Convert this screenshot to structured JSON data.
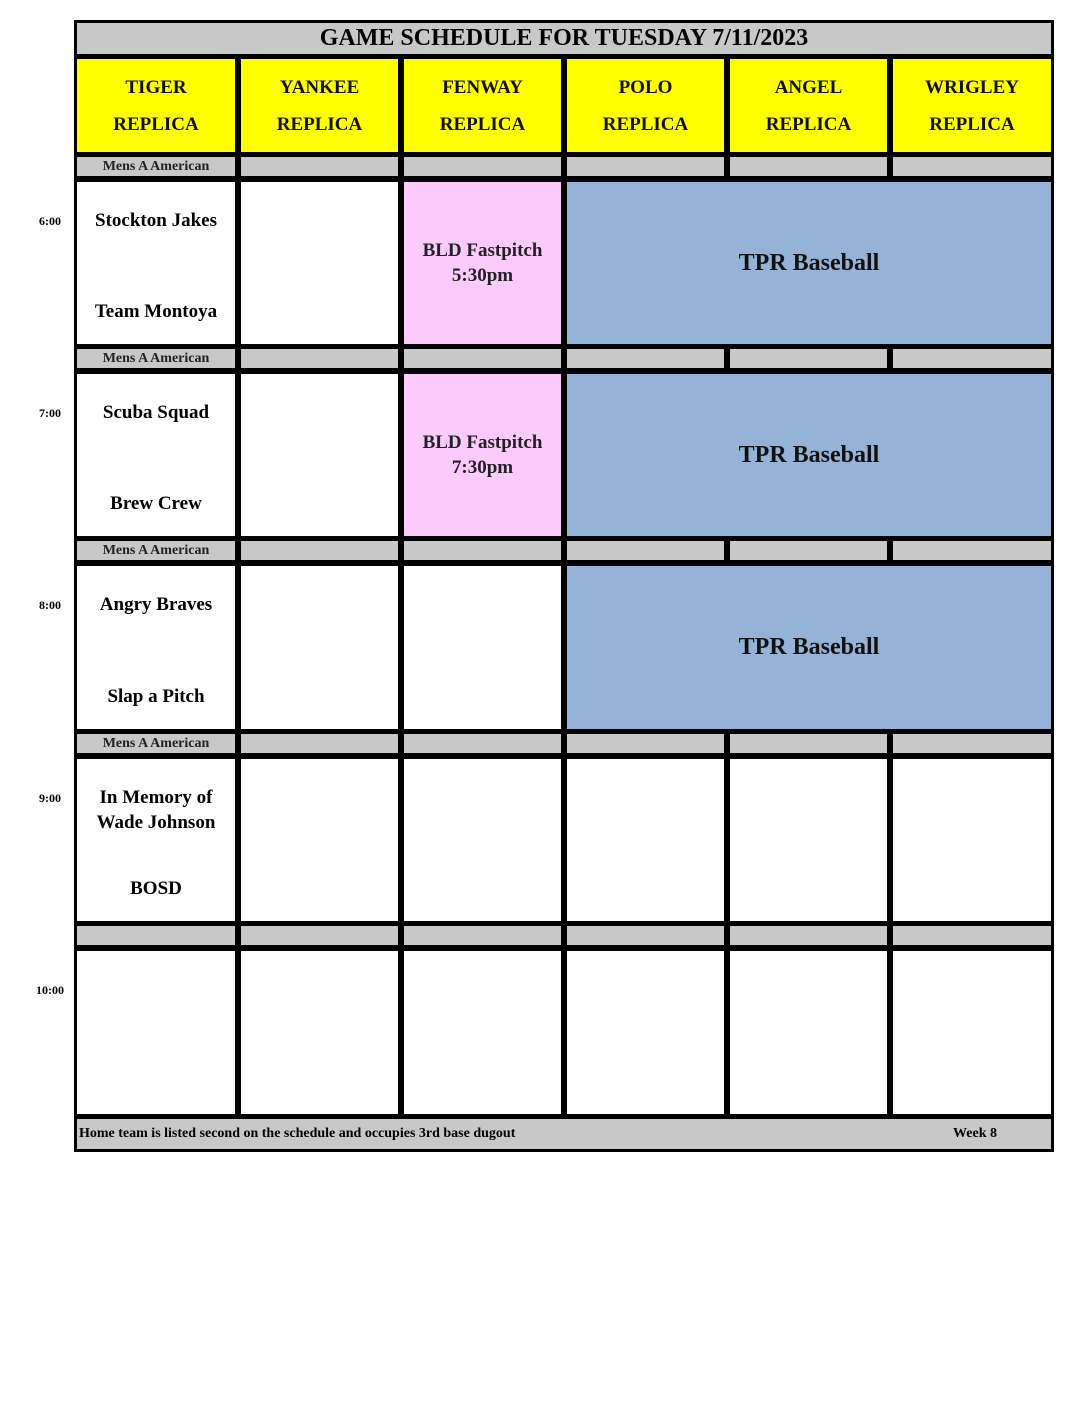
{
  "title": "GAME SCHEDULE FOR TUESDAY 7/11/2023",
  "fields": [
    {
      "name": "TIGER",
      "sub": "REPLICA"
    },
    {
      "name": "YANKEE",
      "sub": "REPLICA"
    },
    {
      "name": "FENWAY",
      "sub": "REPLICA"
    },
    {
      "name": "POLO",
      "sub": "REPLICA"
    },
    {
      "name": "ANGEL",
      "sub": "REPLICA"
    },
    {
      "name": "WRIGLEY",
      "sub": "REPLICA"
    }
  ],
  "slots": [
    {
      "time": "6:00",
      "division": "Mens A American",
      "away": "Stockton Jakes",
      "home": "Team Montoya",
      "fenway": {
        "line1": "BLD Fastpitch",
        "line2": "5:30pm"
      },
      "blocked": "TPR Baseball"
    },
    {
      "time": "7:00",
      "division": "Mens A American",
      "away": "Scuba Squad",
      "home": "Brew Crew",
      "fenway": {
        "line1": "BLD Fastpitch",
        "line2": "7:30pm"
      },
      "blocked": "TPR Baseball"
    },
    {
      "time": "8:00",
      "division": "Mens A American",
      "away": "Angry Braves",
      "home": "Slap a Pitch",
      "blocked": "TPR Baseball"
    },
    {
      "time": "9:00",
      "division": "Mens A American",
      "away": "In Memory of Wade Johnson",
      "home": "BOSD"
    },
    {
      "time": "10:00",
      "division": ""
    }
  ],
  "footer": {
    "note": "Home team is listed second on the schedule and occupies 3rd base dugout",
    "week": "Week 8"
  },
  "colors": {
    "header": "#ffff00",
    "gray": "#c8c8c8",
    "fastpitch": "#fccafc",
    "blocked": "#95b3d7"
  }
}
